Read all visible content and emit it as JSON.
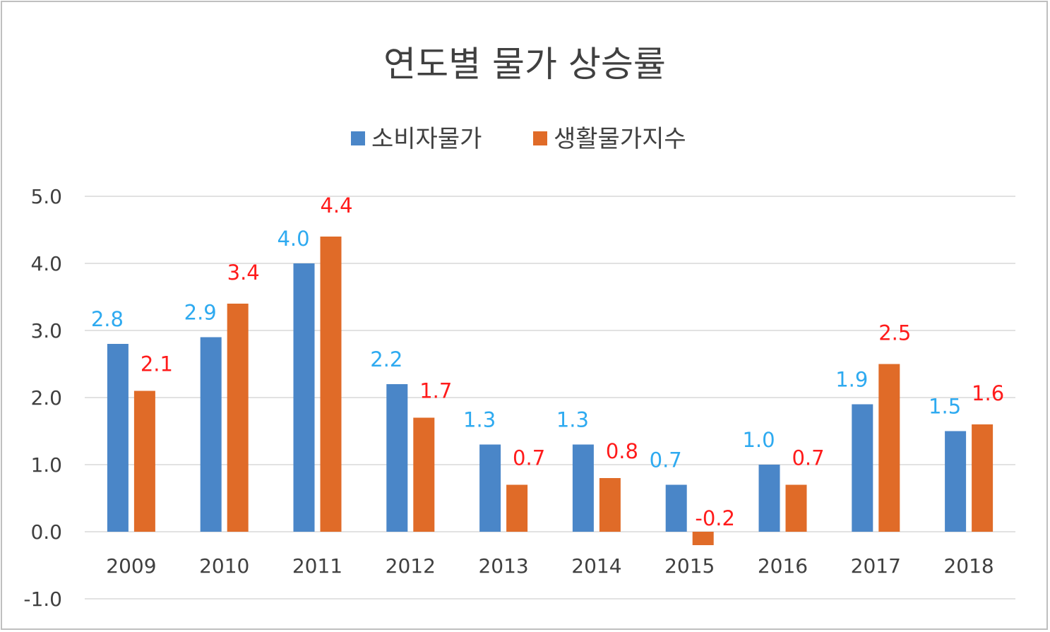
{
  "chart_data": {
    "type": "bar",
    "title": "연도별 물가 상승률",
    "categories": [
      "2009",
      "2010",
      "2011",
      "2012",
      "2013",
      "2014",
      "2015",
      "2016",
      "2017",
      "2018"
    ],
    "series": [
      {
        "name": "소비자물가",
        "values": [
          2.8,
          2.9,
          4.0,
          2.2,
          1.3,
          1.3,
          0.7,
          1.0,
          1.9,
          1.5
        ]
      },
      {
        "name": "생활물가지수",
        "values": [
          2.1,
          3.4,
          4.4,
          1.7,
          0.7,
          0.8,
          -0.2,
          0.7,
          2.5,
          1.6
        ]
      }
    ],
    "ylim": [
      -1.0,
      5.0
    ],
    "yticks": [
      "-1.0",
      "0.0",
      "1.0",
      "2.0",
      "3.0",
      "4.0",
      "5.0"
    ],
    "grid": true,
    "legend_position": "top",
    "colors": {
      "series_1_bar": "#4a86c8",
      "series_2_bar": "#e06b28",
      "series_1_label": "#2eaaf0",
      "series_2_label": "#ff1b1b"
    }
  }
}
